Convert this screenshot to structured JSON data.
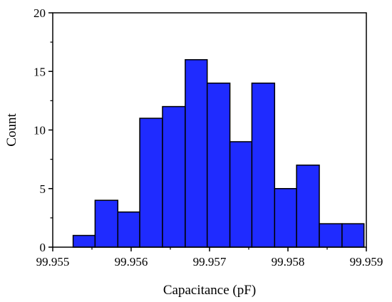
{
  "chart_data": {
    "type": "bar",
    "subtype": "histogram",
    "xlabel": "Capacitance (pF)",
    "ylabel": "Count",
    "xlim": [
      99.955,
      99.959
    ],
    "ylim": [
      0,
      20
    ],
    "xticks": [
      "99.955",
      "99.956",
      "99.957",
      "99.958",
      "99.959"
    ],
    "yticks": [
      "0",
      "5",
      "10",
      "15",
      "20"
    ],
    "bin_width": 0.0002857,
    "bins": [
      {
        "x0": 99.95526,
        "x1": 99.95554,
        "count": 1
      },
      {
        "x0": 99.95554,
        "x1": 99.95583,
        "count": 4
      },
      {
        "x0": 99.95583,
        "x1": 99.95611,
        "count": 3
      },
      {
        "x0": 99.95611,
        "x1": 99.9564,
        "count": 11
      },
      {
        "x0": 99.9564,
        "x1": 99.95669,
        "count": 12
      },
      {
        "x0": 99.95669,
        "x1": 99.95697,
        "count": 16
      },
      {
        "x0": 99.95697,
        "x1": 99.95726,
        "count": 14
      },
      {
        "x0": 99.95726,
        "x1": 99.95754,
        "count": 9
      },
      {
        "x0": 99.95754,
        "x1": 99.95783,
        "count": 14
      },
      {
        "x0": 99.95783,
        "x1": 99.95811,
        "count": 5
      },
      {
        "x0": 99.95811,
        "x1": 99.9584,
        "count": 7
      },
      {
        "x0": 99.9584,
        "x1": 99.95869,
        "count": 2
      },
      {
        "x0": 99.95869,
        "x1": 99.95897,
        "count": 2
      }
    ],
    "grid": false,
    "bar_color": "#1f2bff",
    "edge_color": "#000000"
  }
}
